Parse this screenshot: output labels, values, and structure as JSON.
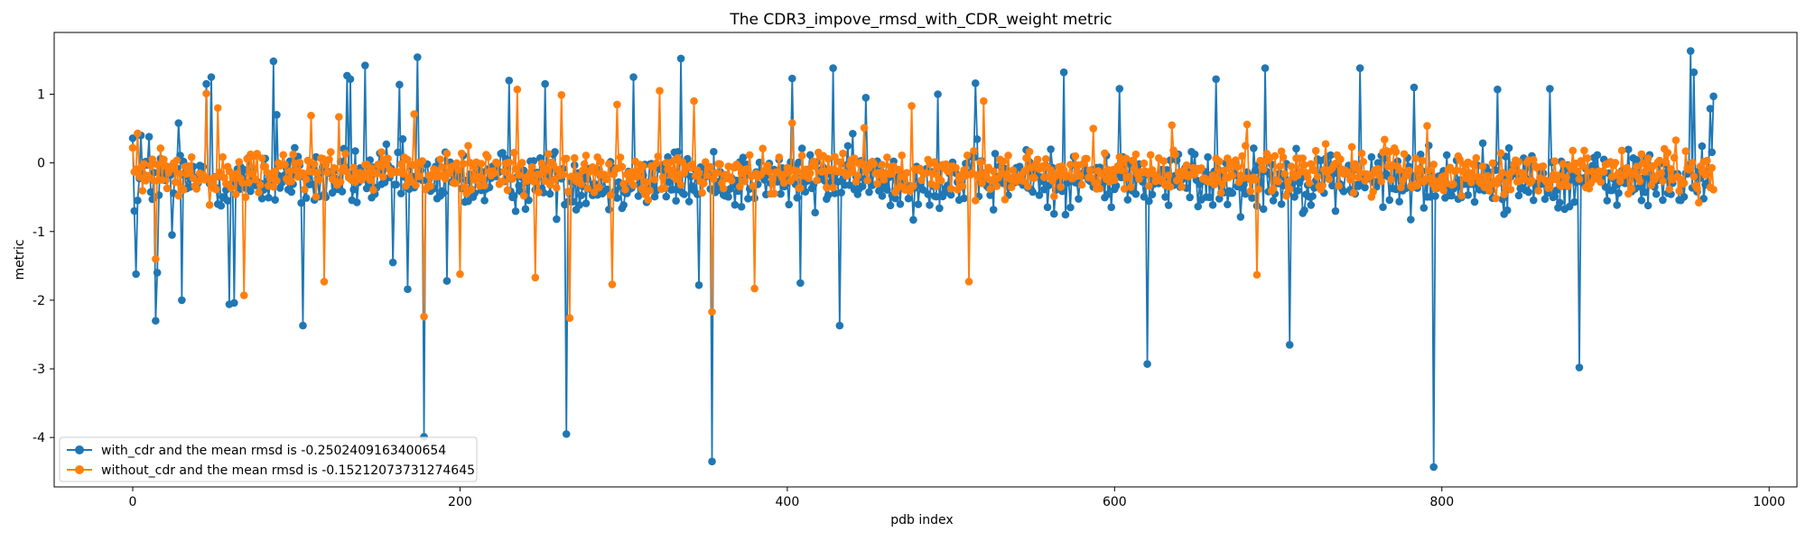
{
  "chart_data": {
    "type": "line",
    "title": "The CDR3_impove_rmsd_with_CDR_weight metric",
    "xlabel": "pdb index",
    "ylabel": "metric",
    "xlim": [
      -48,
      1017
    ],
    "ylim": [
      -4.72,
      1.9
    ],
    "xticks": [
      0,
      200,
      400,
      600,
      800,
      1000
    ],
    "yticks": [
      -4,
      -3,
      -2,
      -1,
      0,
      1
    ],
    "legend_position": "lower-left",
    "grid": false,
    "n_points": 967,
    "series": [
      {
        "name": "with_cdr and the mean rmsd is -0.2502409163400654",
        "color": "#1f77b4",
        "marker": "circle",
        "mean": -0.2502409163400654,
        "points": [
          [
            0,
            0.36
          ],
          [
            1,
            -0.7
          ],
          [
            2,
            -1.62
          ],
          [
            5,
            0.4
          ],
          [
            10,
            0.38
          ],
          [
            14,
            -2.3
          ],
          [
            15,
            -1.6
          ],
          [
            24,
            -1.05
          ],
          [
            28,
            0.58
          ],
          [
            30,
            -2.0
          ],
          [
            45,
            1.15
          ],
          [
            48,
            1.25
          ],
          [
            59,
            -2.06
          ],
          [
            62,
            -2.04
          ],
          [
            86,
            1.48
          ],
          [
            88,
            0.7
          ],
          [
            104,
            -2.37
          ],
          [
            131,
            1.27
          ],
          [
            133,
            1.22
          ],
          [
            142,
            1.42
          ],
          [
            159,
            -1.45
          ],
          [
            163,
            1.14
          ],
          [
            168,
            -1.84
          ],
          [
            174,
            1.54
          ],
          [
            178,
            -3.99
          ],
          [
            192,
            -1.72
          ],
          [
            230,
            1.2
          ],
          [
            252,
            1.15
          ],
          [
            265,
            -3.95
          ],
          [
            306,
            1.25
          ],
          [
            335,
            1.52
          ],
          [
            346,
            -1.78
          ],
          [
            354,
            -4.35
          ],
          [
            403,
            1.23
          ],
          [
            408,
            -1.75
          ],
          [
            428,
            1.38
          ],
          [
            432,
            -2.37
          ],
          [
            448,
            0.95
          ],
          [
            492,
            1.0
          ],
          [
            515,
            1.16
          ],
          [
            569,
            1.32
          ],
          [
            603,
            1.08
          ],
          [
            620,
            -2.93
          ],
          [
            662,
            1.22
          ],
          [
            692,
            1.38
          ],
          [
            707,
            -2.65
          ],
          [
            750,
            1.38
          ],
          [
            783,
            1.1
          ],
          [
            795,
            -4.43
          ],
          [
            834,
            1.07
          ],
          [
            866,
            1.08
          ],
          [
            884,
            -2.98
          ],
          [
            952,
            1.63
          ],
          [
            954,
            1.32
          ],
          [
            964,
            0.79
          ],
          [
            966,
            0.97
          ],
          [
            967,
            -0.55
          ]
        ]
      },
      {
        "name": "without_cdr and the mean rmsd is -0.15212073731274645",
        "color": "#ff7f0e",
        "marker": "circle",
        "mean": -0.15212073731274645,
        "points": [
          [
            0,
            0.22
          ],
          [
            3,
            0.43
          ],
          [
            14,
            -1.4
          ],
          [
            45,
            1.01
          ],
          [
            52,
            0.8
          ],
          [
            68,
            -1.93
          ],
          [
            109,
            0.69
          ],
          [
            117,
            -1.73
          ],
          [
            126,
            0.67
          ],
          [
            172,
            0.71
          ],
          [
            178,
            -2.24
          ],
          [
            200,
            -1.62
          ],
          [
            235,
            1.07
          ],
          [
            246,
            -1.67
          ],
          [
            262,
            0.99
          ],
          [
            267,
            -2.26
          ],
          [
            293,
            -1.77
          ],
          [
            296,
            0.85
          ],
          [
            322,
            1.05
          ],
          [
            343,
            0.9
          ],
          [
            354,
            -2.17
          ],
          [
            380,
            -1.83
          ],
          [
            403,
            0.58
          ],
          [
            447,
            0.51
          ],
          [
            476,
            0.83
          ],
          [
            511,
            -1.73
          ],
          [
            520,
            0.9
          ],
          [
            587,
            0.5
          ],
          [
            635,
            0.55
          ],
          [
            681,
            0.56
          ],
          [
            687,
            -1.63
          ],
          [
            765,
            0.34
          ],
          [
            791,
            0.54
          ],
          [
            887,
            0.18
          ],
          [
            943,
            0.33
          ],
          [
            956,
            -0.37
          ],
          [
            966,
            -0.39
          ],
          [
            967,
            0.28
          ]
        ]
      }
    ]
  }
}
